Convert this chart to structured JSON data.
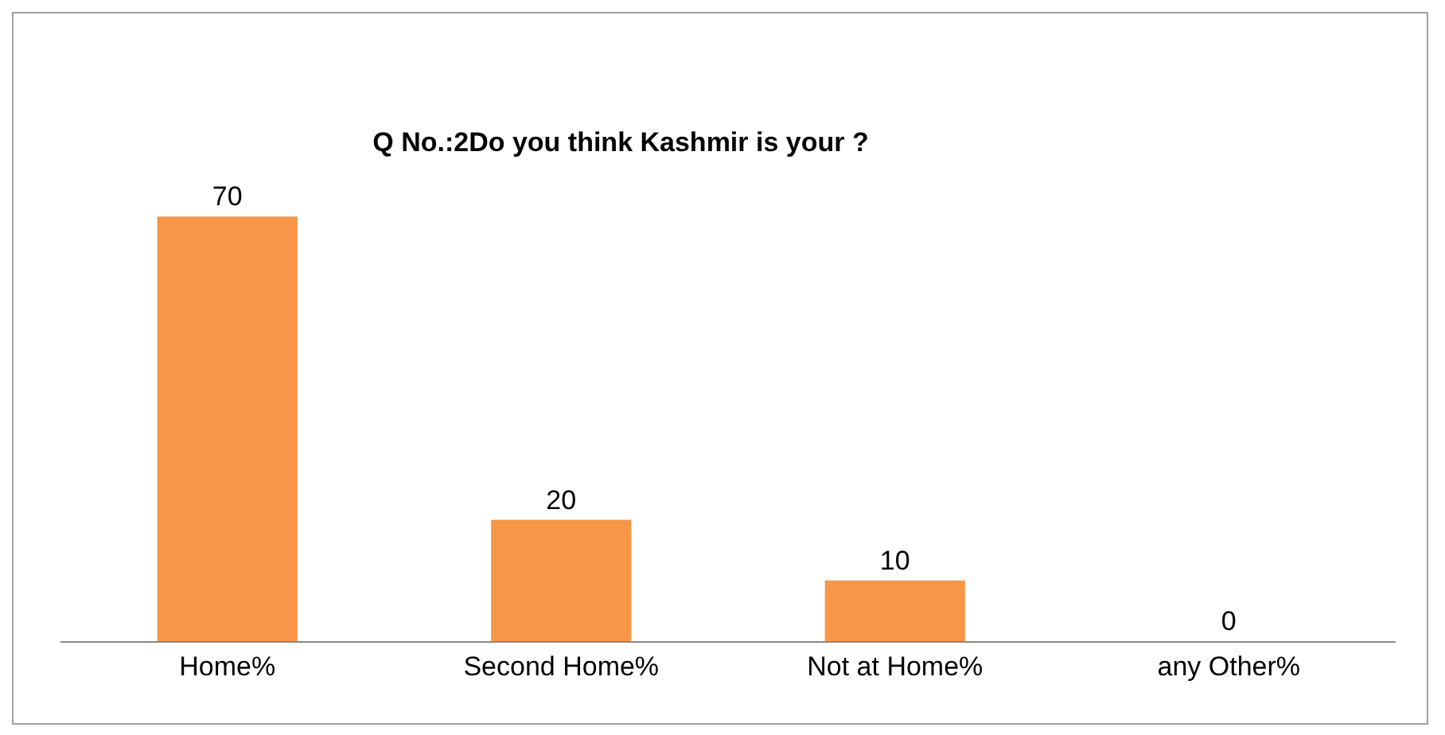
{
  "chart_data": {
    "type": "bar",
    "title": "Q No.:2Do you think Kashmir is your ?",
    "categories": [
      "Home%",
      "Second Home%",
      "Not at Home%",
      "any Other%"
    ],
    "values": [
      70,
      20,
      10,
      0
    ],
    "color": "#f79646",
    "data_labels": true
  }
}
